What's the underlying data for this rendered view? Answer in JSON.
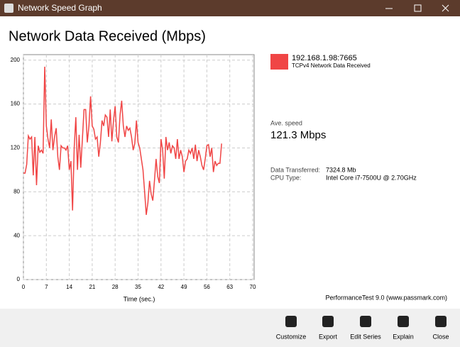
{
  "window": {
    "title": "Network Speed Graph"
  },
  "chart_data": {
    "type": "line",
    "title": "Network Data Received (Mbps)",
    "x_label": "Time (sec.)",
    "xlim": [
      0,
      70
    ],
    "xticks": [
      0,
      7,
      14,
      21,
      28,
      35,
      42,
      49,
      56,
      63,
      70
    ],
    "ylim": [
      0,
      205
    ],
    "yticks": [
      0,
      40,
      80,
      120,
      160,
      200
    ],
    "grid": true,
    "x": [
      0,
      0.5,
      1,
      1.5,
      2,
      2.5,
      3,
      3.5,
      4,
      4.5,
      5,
      5.5,
      6,
      6.5,
      7,
      7.5,
      8,
      8.5,
      9,
      9.5,
      10,
      10.5,
      11,
      11.5,
      12,
      12.5,
      13,
      13.5,
      14,
      14.5,
      15,
      15.5,
      16,
      16.5,
      17,
      17.5,
      18,
      18.5,
      19,
      19.5,
      20,
      20.5,
      21,
      21.5,
      22,
      22.5,
      23,
      23.5,
      24,
      24.5,
      25,
      25.5,
      26,
      26.5,
      27,
      27.5,
      28,
      28.5,
      29,
      29.5,
      30,
      30.5,
      31,
      31.5,
      32,
      32.5,
      33,
      33.5,
      34,
      34.5,
      35,
      35.5,
      36,
      36.5,
      37,
      37.5,
      38,
      38.5,
      39,
      39.5,
      40,
      40.5,
      41,
      41.5,
      42,
      42.5,
      43,
      43.5,
      44,
      44.5,
      45,
      45.5,
      46,
      46.5,
      47,
      47.5,
      48,
      48.5,
      49,
      49.5,
      50,
      50.5,
      51,
      51.5,
      52,
      52.5,
      53,
      53.5,
      54,
      54.5,
      55,
      55.5,
      56,
      56.5,
      57,
      57.5,
      58,
      58.5,
      59,
      59.5,
      60,
      60.5
    ],
    "series": [
      {
        "name": "192.168.1.98:7665",
        "description": "TCPv4 Network Data Received",
        "color": "#f04545",
        "values": [
          97,
          97,
          105,
          131,
          128,
          130,
          95,
          130,
          86,
          122,
          116,
          118,
          115,
          194,
          140,
          128,
          120,
          146,
          118,
          130,
          138,
          112,
          100,
          122,
          120,
          120,
          118,
          122,
          100,
          108,
          63,
          120,
          148,
          100,
          132,
          102,
          128,
          155,
          155,
          125,
          140,
          167,
          140,
          137,
          128,
          130,
          112,
          125,
          145,
          140,
          150,
          148,
          130,
          155,
          126,
          145,
          158,
          130,
          125,
          150,
          163,
          140,
          130,
          140,
          136,
          138,
          130,
          118,
          124,
          145,
          125,
          120,
          110,
          100,
          80,
          59,
          70,
          90,
          78,
          72,
          90,
          110,
          94,
          88,
          128,
          118,
          92,
          130,
          118,
          125,
          115,
          122,
          120,
          110,
          128,
          110,
          118,
          112,
          98,
          108,
          110,
          118,
          115,
          120,
          110,
          123,
          108,
          118,
          112,
          104,
          100,
          110,
          122,
          123,
          112,
          120,
          98,
          108,
          104,
          106,
          106,
          124
        ]
      }
    ]
  },
  "stats": {
    "ave_label": "Ave. speed",
    "ave_value": "121.3 Mbps",
    "rows": [
      [
        "Data Transferred:",
        "7324.8 Mb"
      ],
      [
        "CPU Type:",
        "Intel Core i7-7500U @ 2.70GHz"
      ]
    ]
  },
  "footer": "PerformanceTest 9.0 (www.passmark.com)",
  "buttons": [
    "Customize",
    "Export",
    "Edit Series",
    "Explain",
    "Close"
  ]
}
